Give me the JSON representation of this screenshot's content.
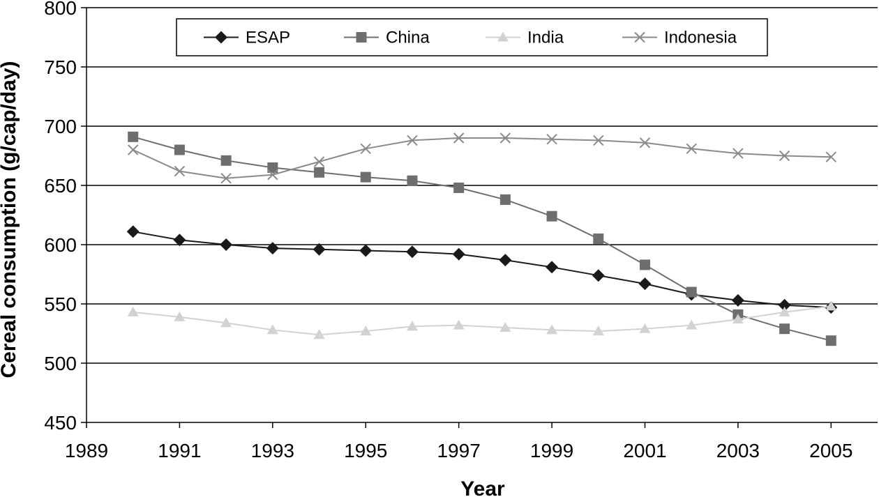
{
  "chart_data": {
    "type": "line",
    "title": "",
    "xlabel": "Year",
    "ylabel": "Cereal consumption (g/cap/day)",
    "xlim": [
      1989,
      2006
    ],
    "ylim": [
      450,
      800
    ],
    "x_ticks": [
      1989,
      1991,
      1993,
      1995,
      1997,
      1999,
      2001,
      2003,
      2005
    ],
    "y_ticks": [
      450,
      500,
      550,
      600,
      650,
      700,
      750,
      800
    ],
    "grid": "horizontal",
    "legend_position": "top",
    "x": [
      1990,
      1991,
      1992,
      1993,
      1994,
      1995,
      1996,
      1997,
      1998,
      1999,
      2000,
      2001,
      2002,
      2003,
      2004,
      2005
    ],
    "series": [
      {
        "name": "ESAP",
        "color": "#1a1a1a",
        "marker": "diamond",
        "values": [
          611,
          604,
          600,
          597,
          596,
          595,
          594,
          592,
          587,
          581,
          574,
          567,
          558,
          553,
          549,
          547
        ]
      },
      {
        "name": "China",
        "color": "#6e6e6e",
        "marker": "square",
        "values": [
          691,
          680,
          671,
          665,
          661,
          657,
          654,
          648,
          638,
          624,
          605,
          583,
          560,
          541,
          529,
          519
        ]
      },
      {
        "name": "India",
        "color": "#d2d2d2",
        "marker": "triangle",
        "values": [
          543,
          539,
          534,
          528,
          524,
          527,
          531,
          532,
          530,
          528,
          527,
          529,
          532,
          537,
          543,
          548
        ]
      },
      {
        "name": "Indonesia",
        "color": "#8a8a8a",
        "marker": "x",
        "values": [
          680,
          662,
          656,
          659,
          670,
          681,
          688,
          690,
          690,
          689,
          688,
          686,
          681,
          677,
          675,
          674
        ]
      }
    ]
  }
}
